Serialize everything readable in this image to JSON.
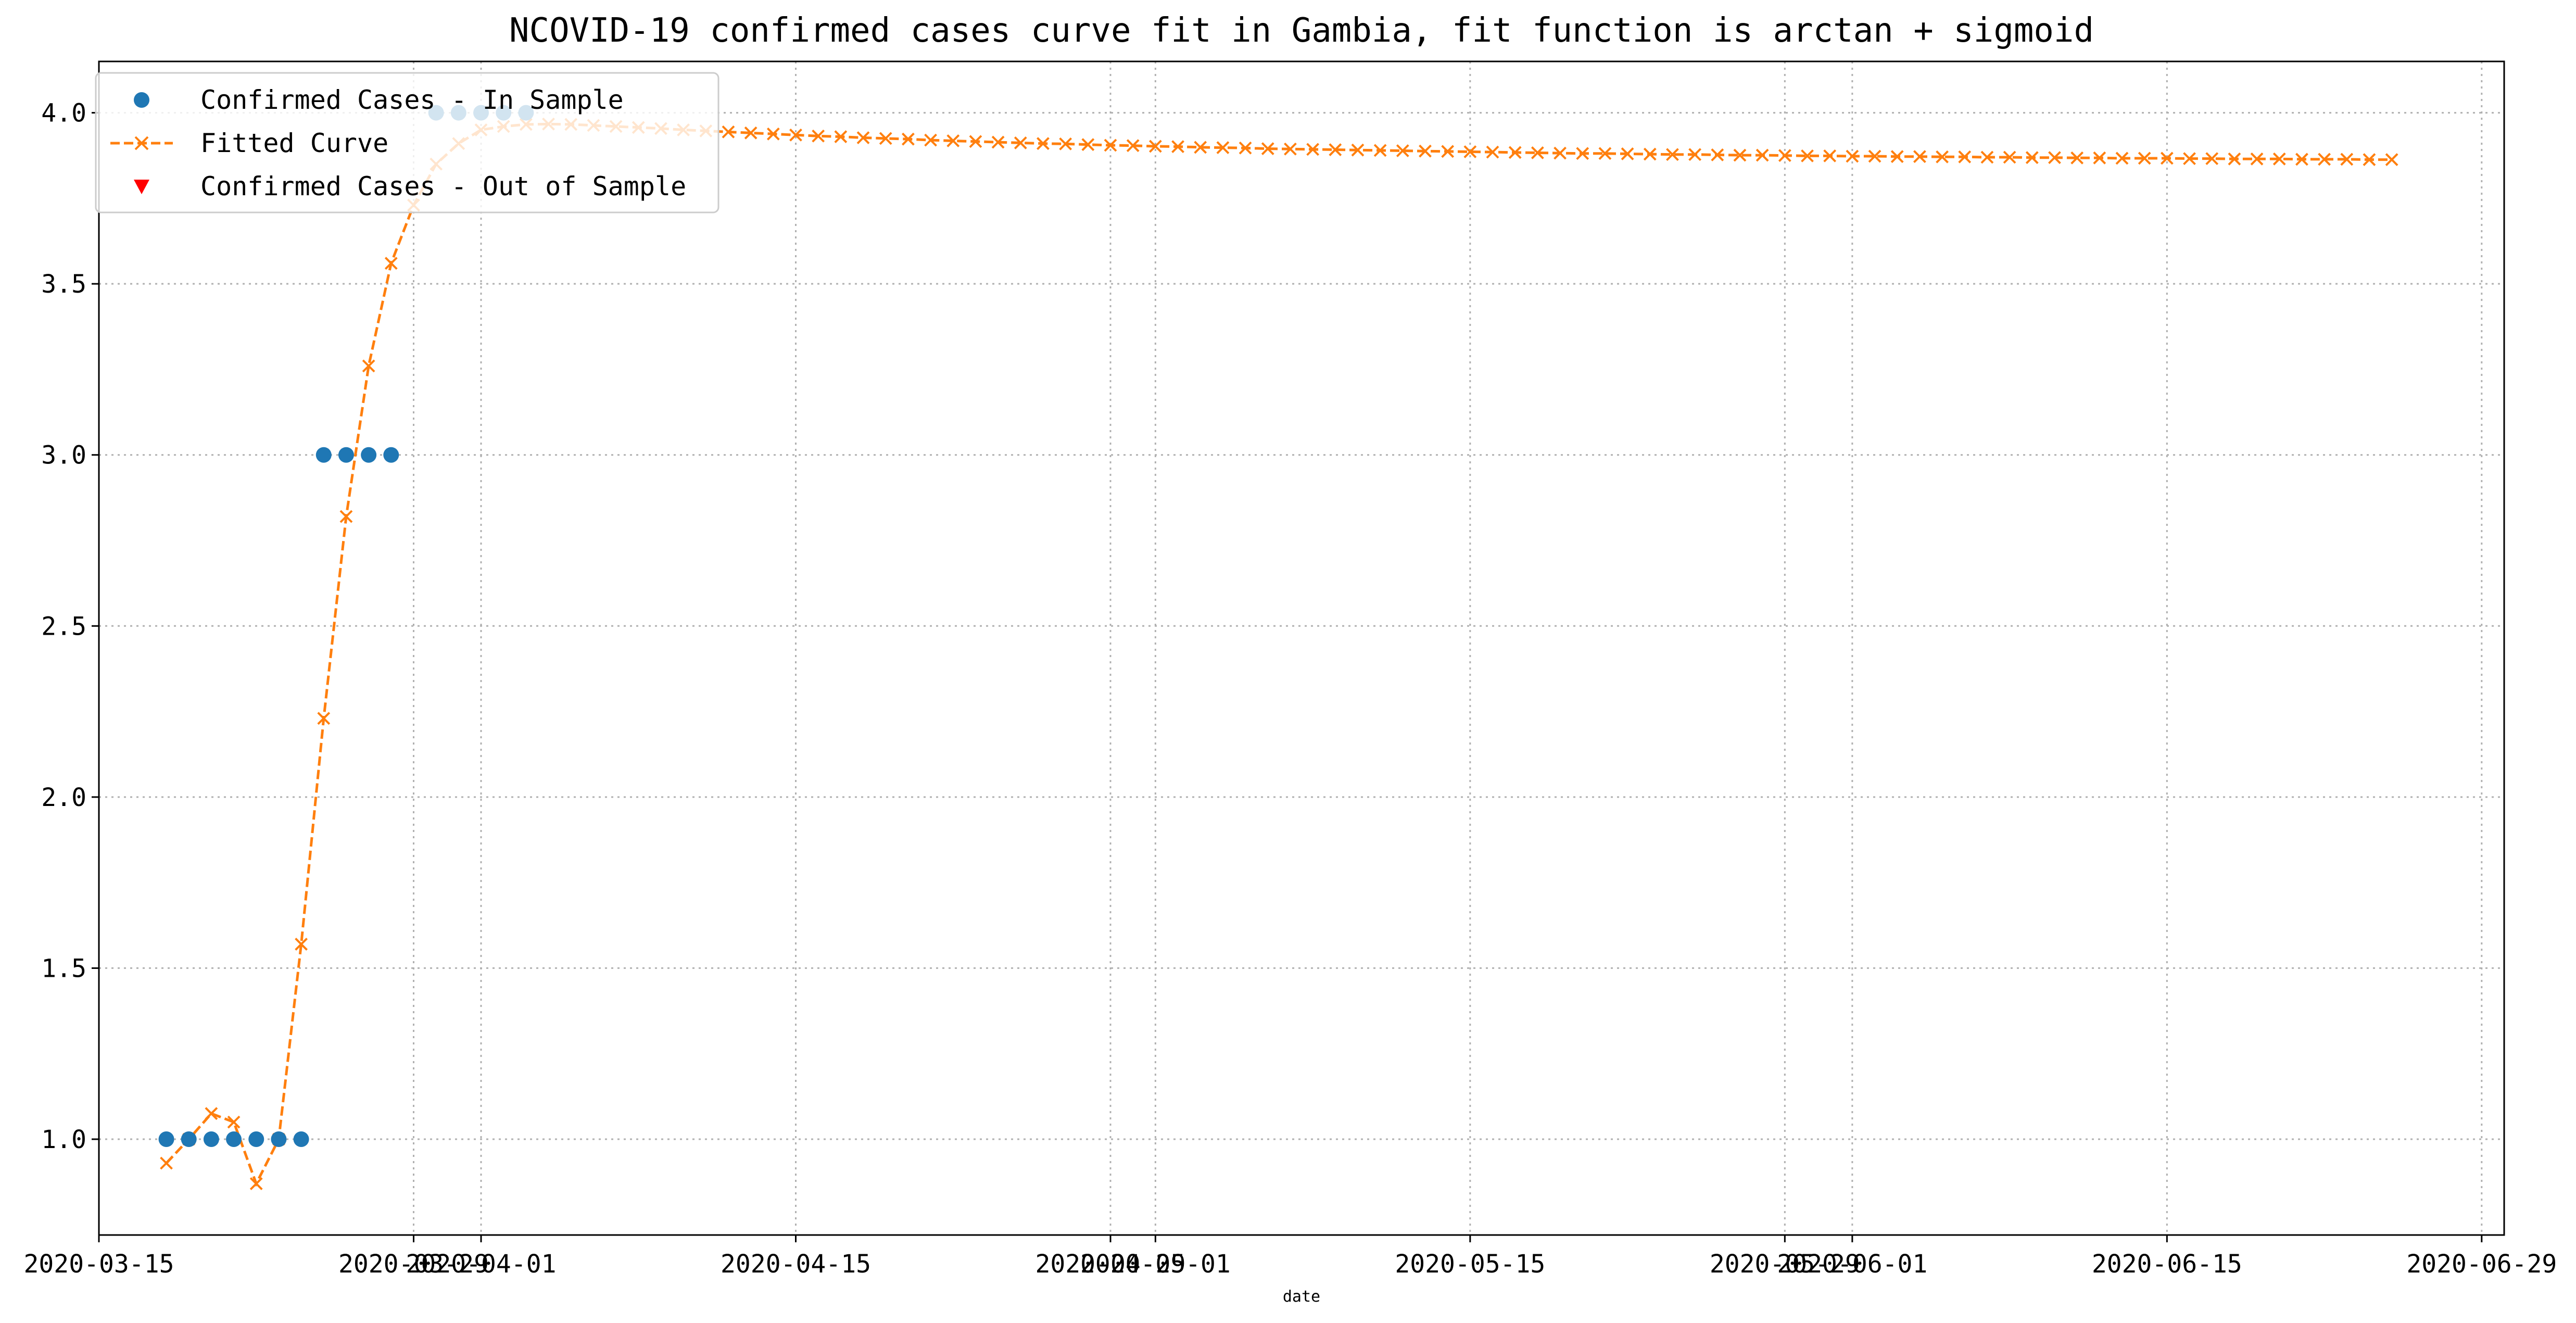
{
  "chart_data": {
    "type": "line",
    "title": "NCOVID-19 confirmed cases curve fit in Gambia, fit function is arctan + sigmoid",
    "xlabel": "date",
    "ylabel": "",
    "x_axis_kind": "date",
    "xlim": [
      "2020-03-15",
      "2020-06-30"
    ],
    "ylim": [
      0.72,
      4.15
    ],
    "grid": true,
    "grid_style": "dotted",
    "legend_position": "top-left",
    "x_ticks": [
      {
        "date": "2020-03-15",
        "label": "2020-03-15"
      },
      {
        "date": "2020-03-29",
        "label": "2020-03-29"
      },
      {
        "date": "2020-04-01",
        "label": "2020-04-01"
      },
      {
        "date": "2020-04-15",
        "label": "2020-04-15"
      },
      {
        "date": "2020-04-29",
        "label": "2020-04-29"
      },
      {
        "date": "2020-05-01",
        "label": "2020-05-01"
      },
      {
        "date": "2020-05-15",
        "label": "2020-05-15"
      },
      {
        "date": "2020-05-29",
        "label": "2020-05-29"
      },
      {
        "date": "2020-06-01",
        "label": "2020-06-01"
      },
      {
        "date": "2020-06-15",
        "label": "2020-06-15"
      },
      {
        "date": "2020-06-29",
        "label": "2020-06-29"
      }
    ],
    "y_ticks": [
      {
        "value": 1.0,
        "label": "1.0"
      },
      {
        "value": 1.5,
        "label": "1.5"
      },
      {
        "value": 2.0,
        "label": "2.0"
      },
      {
        "value": 2.5,
        "label": "2.5"
      },
      {
        "value": 3.0,
        "label": "3.0"
      },
      {
        "value": 3.5,
        "label": "3.5"
      },
      {
        "value": 4.0,
        "label": "4.0"
      }
    ],
    "series": [
      {
        "name": "Confirmed Cases - In Sample",
        "style": "scatter",
        "marker": "circle",
        "color": "#1f77b4",
        "points": [
          {
            "x": "2020-03-18",
            "y": 1
          },
          {
            "x": "2020-03-19",
            "y": 1
          },
          {
            "x": "2020-03-20",
            "y": 1
          },
          {
            "x": "2020-03-21",
            "y": 1
          },
          {
            "x": "2020-03-22",
            "y": 1
          },
          {
            "x": "2020-03-23",
            "y": 1
          },
          {
            "x": "2020-03-24",
            "y": 1
          },
          {
            "x": "2020-03-25",
            "y": 3
          },
          {
            "x": "2020-03-26",
            "y": 3
          },
          {
            "x": "2020-03-27",
            "y": 3
          },
          {
            "x": "2020-03-28",
            "y": 3
          },
          {
            "x": "2020-03-30",
            "y": 4
          },
          {
            "x": "2020-03-31",
            "y": 4
          },
          {
            "x": "2020-04-01",
            "y": 4
          },
          {
            "x": "2020-04-02",
            "y": 4
          },
          {
            "x": "2020-04-03",
            "y": 4
          }
        ]
      },
      {
        "name": "Fitted Curve",
        "style": "dashed-line",
        "marker": "x",
        "color": "#ff7f0e",
        "start_date": "2020-03-18",
        "values": [
          0.93,
          1.0,
          1.075,
          1.05,
          0.87,
          1.0,
          1.57,
          2.23,
          2.82,
          3.26,
          3.56,
          3.73,
          3.85,
          3.91,
          3.95,
          3.96,
          3.966,
          3.967,
          3.966,
          3.963,
          3.96,
          3.957,
          3.954,
          3.95,
          3.947,
          3.944,
          3.941,
          3.938,
          3.935,
          3.932,
          3.93,
          3.927,
          3.925,
          3.923,
          3.92,
          3.918,
          3.916,
          3.914,
          3.912,
          3.91,
          3.909,
          3.907,
          3.905,
          3.904,
          3.902,
          3.901,
          3.899,
          3.898,
          3.897,
          3.895,
          3.894,
          3.893,
          3.892,
          3.891,
          3.89,
          3.889,
          3.888,
          3.887,
          3.886,
          3.885,
          3.884,
          3.883,
          3.882,
          3.881,
          3.881,
          3.88,
          3.879,
          3.878,
          3.878,
          3.877,
          3.876,
          3.876,
          3.875,
          3.874,
          3.874,
          3.873,
          3.873,
          3.872,
          3.872,
          3.871,
          3.871,
          3.87,
          3.87,
          3.869,
          3.869,
          3.868,
          3.868,
          3.867,
          3.867,
          3.867,
          3.866,
          3.866,
          3.865,
          3.865,
          3.865,
          3.864,
          3.864,
          3.864,
          3.863,
          3.863
        ]
      },
      {
        "name": "Confirmed Cases - Out of Sample",
        "style": "scatter",
        "marker": "triangle-down",
        "color": "#ff0000",
        "points": []
      }
    ]
  }
}
